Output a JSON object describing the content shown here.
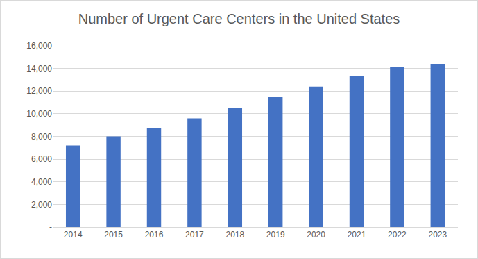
{
  "chart_data": {
    "type": "bar",
    "title": "Number of Urgent Care Centers in the United States",
    "categories": [
      "2014",
      "2015",
      "2016",
      "2017",
      "2018",
      "2019",
      "2020",
      "2021",
      "2022",
      "2023"
    ],
    "values": [
      7200,
      8000,
      8700,
      9600,
      10500,
      11500,
      12400,
      13300,
      14100,
      14400
    ],
    "color": "#4472c4",
    "ylim": [
      0,
      16000
    ],
    "yticks": [
      {
        "value": 0,
        "label": "-"
      },
      {
        "value": 2000,
        "label": "2,000"
      },
      {
        "value": 4000,
        "label": "4,000"
      },
      {
        "value": 6000,
        "label": "6,000"
      },
      {
        "value": 8000,
        "label": "8,000"
      },
      {
        "value": 10000,
        "label": "10,000"
      },
      {
        "value": 12000,
        "label": "12,000"
      },
      {
        "value": 14000,
        "label": "14,000"
      },
      {
        "value": 16000,
        "label": "16,000"
      }
    ],
    "grid": true
  }
}
